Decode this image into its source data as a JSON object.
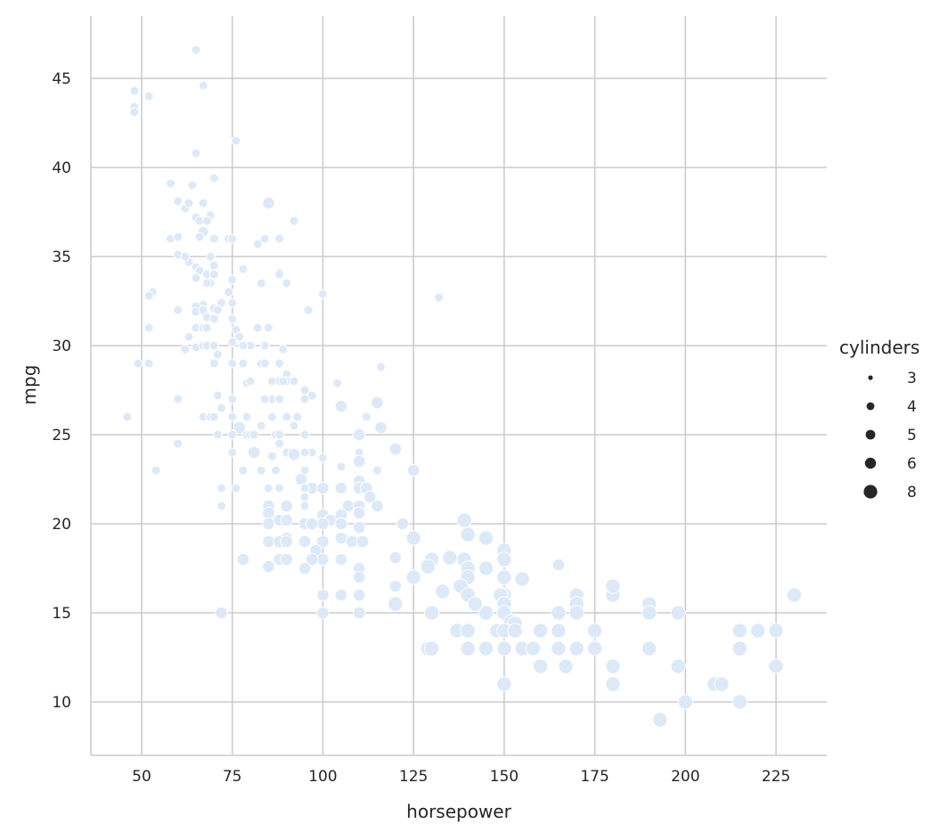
{
  "chart_data": {
    "type": "scatter",
    "xlabel": "horsepower",
    "ylabel": "mpg",
    "xlim": [
      36,
      239
    ],
    "ylim": [
      7,
      48.5
    ],
    "xticks": [
      50,
      75,
      100,
      125,
      150,
      175,
      200,
      225
    ],
    "yticks": [
      10,
      15,
      20,
      25,
      30,
      35,
      40,
      45
    ],
    "grid": true,
    "legend": {
      "title": "cylinders",
      "placement": "right",
      "entries": [
        "3",
        "4",
        "5",
        "6",
        "8"
      ]
    },
    "point_color": "#dde9f7",
    "points": [
      [
        65,
        46.6,
        4
      ],
      [
        67,
        44.6,
        4
      ],
      [
        48,
        44.3,
        4
      ],
      [
        52,
        44,
        4
      ],
      [
        48,
        43.4,
        4
      ],
      [
        48,
        43.1,
        4
      ],
      [
        76,
        41.5,
        4
      ],
      [
        65,
        40.8,
        4
      ],
      [
        70,
        39.4,
        4
      ],
      [
        58,
        39.1,
        4
      ],
      [
        64,
        39,
        4
      ],
      [
        60,
        38.1,
        4
      ],
      [
        62,
        37.7,
        4
      ],
      [
        63,
        38,
        4
      ],
      [
        67,
        38,
        4
      ],
      [
        85,
        38,
        6
      ],
      [
        69,
        37.3,
        4
      ],
      [
        65,
        37.2,
        4
      ],
      [
        66,
        37,
        4
      ],
      [
        68,
        37,
        4
      ],
      [
        92,
        37,
        4
      ],
      [
        67,
        36.4,
        5
      ],
      [
        70,
        36,
        4
      ],
      [
        74,
        36,
        4
      ],
      [
        75,
        36,
        4
      ],
      [
        58,
        36,
        4
      ],
      [
        60,
        36.1,
        4
      ],
      [
        84,
        36,
        4
      ],
      [
        88,
        36,
        4
      ],
      [
        82,
        35.7,
        4
      ],
      [
        66,
        36.1,
        4
      ],
      [
        69,
        35,
        4
      ],
      [
        70,
        34.5,
        4
      ],
      [
        60,
        35.1,
        4
      ],
      [
        63,
        34.7,
        4
      ],
      [
        65,
        34.4,
        4
      ],
      [
        66,
        34.2,
        4
      ],
      [
        78,
        34.3,
        4
      ],
      [
        88,
        34.1,
        4
      ],
      [
        68,
        34,
        4
      ],
      [
        88,
        34,
        4
      ],
      [
        62,
        35,
        4
      ],
      [
        70,
        34.0,
        4
      ],
      [
        75,
        33.7,
        4
      ],
      [
        65,
        33.8,
        4
      ],
      [
        69,
        33.5,
        4
      ],
      [
        68,
        33.5,
        4
      ],
      [
        53,
        33,
        4
      ],
      [
        74,
        33,
        4
      ],
      [
        100,
        32.9,
        4
      ],
      [
        52,
        32.8,
        4
      ],
      [
        132,
        32.7,
        4
      ],
      [
        90,
        33.5,
        4
      ],
      [
        83,
        33.5,
        4
      ],
      [
        72,
        32.4,
        4
      ],
      [
        67,
        32.3,
        4
      ],
      [
        70,
        32.1,
        4
      ],
      [
        65,
        32.2,
        4
      ],
      [
        71,
        32,
        4
      ],
      [
        75,
        32.4,
        4
      ],
      [
        60,
        32,
        4
      ],
      [
        65,
        31.9,
        4
      ],
      [
        67,
        32,
        4
      ],
      [
        68,
        31.6,
        4
      ],
      [
        70,
        31.5,
        4
      ],
      [
        96,
        32,
        4
      ],
      [
        75,
        31.5,
        4
      ],
      [
        52,
        31,
        4
      ],
      [
        65,
        31,
        4
      ],
      [
        67,
        31,
        4
      ],
      [
        68,
        31,
        4
      ],
      [
        76,
        30.9,
        4
      ],
      [
        82,
        31,
        4
      ],
      [
        85,
        31,
        4
      ],
      [
        77,
        30.5,
        4
      ],
      [
        63,
        30.5,
        4
      ],
      [
        80,
        30,
        4
      ],
      [
        65,
        29.9,
        4
      ],
      [
        62,
        29.8,
        4
      ],
      [
        67,
        30,
        4
      ],
      [
        68,
        30,
        4
      ],
      [
        70,
        30,
        4
      ],
      [
        75,
        30.2,
        4
      ],
      [
        78,
        30.0,
        4
      ],
      [
        84,
        30,
        4
      ],
      [
        89,
        29.8,
        4
      ],
      [
        71,
        29.5,
        4
      ],
      [
        49,
        29,
        4
      ],
      [
        52,
        29,
        4
      ],
      [
        70,
        29,
        4
      ],
      [
        75,
        29,
        4
      ],
      [
        78,
        29,
        4
      ],
      [
        83,
        29,
        4
      ],
      [
        84,
        29,
        4
      ],
      [
        88,
        29,
        4
      ],
      [
        116,
        28.8,
        4
      ],
      [
        90,
        28.4,
        4
      ],
      [
        90,
        28,
        4
      ],
      [
        79,
        27.9,
        4
      ],
      [
        80,
        28,
        4
      ],
      [
        86,
        28,
        4
      ],
      [
        88,
        28,
        4
      ],
      [
        89,
        28,
        4
      ],
      [
        92,
        28,
        4
      ],
      [
        104,
        27.9,
        4
      ],
      [
        95,
        27.5,
        4
      ],
      [
        60,
        27,
        4
      ],
      [
        71,
        27.2,
        4
      ],
      [
        75,
        27,
        4
      ],
      [
        86,
        27,
        4
      ],
      [
        88,
        27,
        4
      ],
      [
        97,
        27.2,
        4
      ],
      [
        95,
        27,
        4
      ],
      [
        84,
        27,
        4
      ],
      [
        115,
        26.8,
        6
      ],
      [
        105,
        26.6,
        6
      ],
      [
        72,
        26.5,
        4
      ],
      [
        67,
        26,
        4
      ],
      [
        69,
        26,
        4
      ],
      [
        75,
        26,
        4
      ],
      [
        79,
        26,
        4
      ],
      [
        86,
        26,
        4
      ],
      [
        90,
        26,
        4
      ],
      [
        93,
        26,
        4
      ],
      [
        46,
        26,
        4
      ],
      [
        70,
        26,
        4
      ],
      [
        112,
        26,
        4
      ],
      [
        83,
        25.5,
        4
      ],
      [
        92,
        25.5,
        4
      ],
      [
        77,
        25.4,
        6
      ],
      [
        116,
        25.4,
        6
      ],
      [
        75,
        25,
        4
      ],
      [
        79,
        25,
        4
      ],
      [
        71,
        25,
        4
      ],
      [
        87,
        25,
        4
      ],
      [
        95,
        25,
        4
      ],
      [
        80,
        25,
        4
      ],
      [
        88,
        25,
        4
      ],
      [
        110,
        25,
        6
      ],
      [
        81,
        25,
        4
      ],
      [
        60,
        24.5,
        4
      ],
      [
        88,
        24.5,
        4
      ],
      [
        97,
        24,
        4
      ],
      [
        75,
        24,
        4
      ],
      [
        95,
        24,
        4
      ],
      [
        90,
        24,
        4
      ],
      [
        110,
        24,
        4
      ],
      [
        86,
        23.8,
        4
      ],
      [
        92,
        23.9,
        6
      ],
      [
        100,
        23.7,
        4
      ],
      [
        110,
        23.5,
        6
      ],
      [
        120,
        24.2,
        6
      ],
      [
        81,
        24,
        6
      ],
      [
        54,
        23,
        4
      ],
      [
        78,
        23,
        4
      ],
      [
        83,
        23,
        4
      ],
      [
        95,
        23,
        4
      ],
      [
        105,
        23.2,
        4
      ],
      [
        125,
        23,
        6
      ],
      [
        87,
        23,
        4
      ],
      [
        115,
        23,
        4
      ],
      [
        94,
        22.5,
        6
      ],
      [
        110,
        22.4,
        6
      ],
      [
        72,
        22,
        4
      ],
      [
        76,
        22,
        4
      ],
      [
        88,
        22,
        4
      ],
      [
        97,
        22,
        6
      ],
      [
        100,
        22,
        6
      ],
      [
        105,
        22,
        6
      ],
      [
        95,
        22,
        4
      ],
      [
        110,
        22,
        6
      ],
      [
        112,
        22,
        6
      ],
      [
        85,
        22,
        4
      ],
      [
        113,
        21.5,
        6
      ],
      [
        95,
        21.5,
        4
      ],
      [
        72,
        21,
        4
      ],
      [
        90,
        21,
        6
      ],
      [
        85,
        21,
        6
      ],
      [
        95,
        21,
        4
      ],
      [
        107,
        21,
        6
      ],
      [
        110,
        21,
        6
      ],
      [
        115,
        21,
        6
      ],
      [
        105,
        20.5,
        6
      ],
      [
        85,
        20.6,
        6
      ],
      [
        100,
        20.5,
        6
      ],
      [
        102,
        20.2,
        6
      ],
      [
        110,
        20.6,
        6
      ],
      [
        88,
        20.2,
        6
      ],
      [
        90,
        20.2,
        6
      ],
      [
        122,
        20,
        6
      ],
      [
        139,
        20.2,
        8
      ],
      [
        95,
        20,
        6
      ],
      [
        100,
        20,
        6
      ],
      [
        105,
        20,
        6
      ],
      [
        85,
        20,
        6
      ],
      [
        97,
        20,
        6
      ],
      [
        110,
        19.8,
        6
      ],
      [
        140,
        19.4,
        8
      ],
      [
        145,
        19.2,
        8
      ],
      [
        125,
        19.2,
        8
      ],
      [
        90,
        19.2,
        6
      ],
      [
        95,
        19,
        6
      ],
      [
        100,
        19,
        6
      ],
      [
        105,
        19.2,
        6
      ],
      [
        110,
        19,
        6
      ],
      [
        85,
        19,
        6
      ],
      [
        88,
        19,
        6
      ],
      [
        90,
        19,
        6
      ],
      [
        108,
        19,
        6
      ],
      [
        111,
        19,
        6
      ],
      [
        98,
        18.5,
        6
      ],
      [
        150,
        18.5,
        8
      ],
      [
        130,
        18,
        8
      ],
      [
        78,
        18,
        6
      ],
      [
        100,
        18,
        6
      ],
      [
        105,
        18,
        6
      ],
      [
        120,
        18.1,
        6
      ],
      [
        150,
        18,
        8
      ],
      [
        139,
        18,
        8
      ],
      [
        88,
        18,
        6
      ],
      [
        135,
        18.1,
        8
      ],
      [
        85,
        17.6,
        6
      ],
      [
        95,
        17.5,
        6
      ],
      [
        110,
        17.5,
        6
      ],
      [
        140,
        17.5,
        8
      ],
      [
        145,
        17.5,
        8
      ],
      [
        129,
        17.6,
        8
      ],
      [
        165,
        17.7,
        6
      ],
      [
        97,
        18,
        6
      ],
      [
        90,
        18,
        6
      ],
      [
        150,
        17,
        8
      ],
      [
        155,
        16.9,
        8
      ],
      [
        125,
        17,
        8
      ],
      [
        110,
        17,
        6
      ],
      [
        140,
        17,
        8
      ],
      [
        100,
        16,
        6
      ],
      [
        105,
        16,
        6
      ],
      [
        110,
        16,
        6
      ],
      [
        150,
        16,
        8
      ],
      [
        170,
        16,
        8
      ],
      [
        180,
        16,
        8
      ],
      [
        230,
        16,
        8
      ],
      [
        138,
        16.5,
        8
      ],
      [
        120,
        16.5,
        6
      ],
      [
        180,
        16.5,
        8
      ],
      [
        149,
        16,
        8
      ],
      [
        133,
        16.2,
        8
      ],
      [
        140,
        16,
        8
      ],
      [
        142,
        15.5,
        8
      ],
      [
        150,
        15.5,
        8
      ],
      [
        170,
        15.5,
        8
      ],
      [
        190,
        15.5,
        8
      ],
      [
        120,
        15.5,
        8
      ],
      [
        72,
        15,
        6
      ],
      [
        100,
        15,
        6
      ],
      [
        110,
        15,
        6
      ],
      [
        130,
        15,
        8
      ],
      [
        145,
        15,
        8
      ],
      [
        150,
        15,
        8
      ],
      [
        165,
        15,
        8
      ],
      [
        170,
        15,
        8
      ],
      [
        190,
        15,
        8
      ],
      [
        198,
        15,
        8
      ],
      [
        152,
        14.5,
        8
      ],
      [
        153,
        14.4,
        8
      ],
      [
        148,
        14,
        8
      ],
      [
        137,
        14,
        8
      ],
      [
        150,
        14,
        8
      ],
      [
        153,
        14,
        8
      ],
      [
        160,
        14,
        8
      ],
      [
        165,
        14,
        8
      ],
      [
        175,
        14,
        8
      ],
      [
        215,
        14,
        8
      ],
      [
        225,
        14,
        8
      ],
      [
        140,
        14,
        8
      ],
      [
        220,
        14,
        8
      ],
      [
        129,
        13,
        8
      ],
      [
        130,
        13,
        8
      ],
      [
        140,
        13,
        8
      ],
      [
        145,
        13,
        8
      ],
      [
        150,
        13,
        8
      ],
      [
        155,
        13,
        8
      ],
      [
        158,
        13,
        8
      ],
      [
        165,
        13,
        8
      ],
      [
        170,
        13,
        8
      ],
      [
        175,
        13,
        8
      ],
      [
        190,
        13,
        8
      ],
      [
        215,
        13,
        8
      ],
      [
        160,
        12,
        8
      ],
      [
        167,
        12,
        8
      ],
      [
        180,
        12,
        8
      ],
      [
        198,
        12,
        8
      ],
      [
        225,
        12,
        8
      ],
      [
        150,
        11,
        8
      ],
      [
        180,
        11,
        8
      ],
      [
        208,
        11,
        8
      ],
      [
        210,
        11,
        8
      ],
      [
        200,
        10,
        8
      ],
      [
        215,
        10,
        8
      ],
      [
        193,
        9,
        8
      ]
    ]
  }
}
